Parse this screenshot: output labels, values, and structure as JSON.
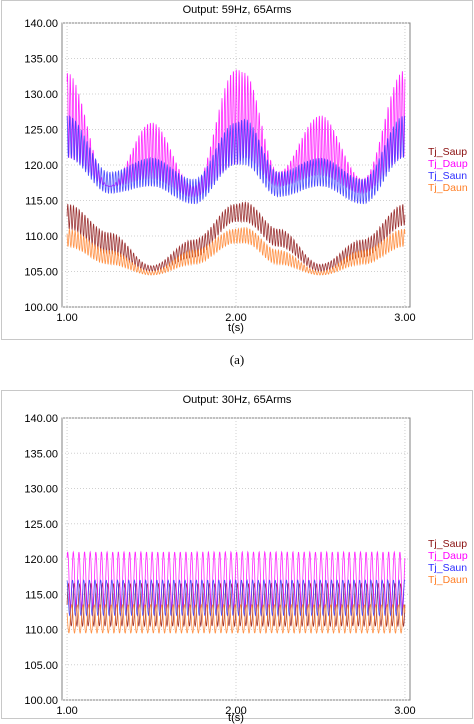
{
  "chart_data": [
    {
      "type": "line",
      "title": "Output: 59Hz, 65Arms",
      "xlabel": "t(s)",
      "ylabel": "",
      "xlim": [
        0.97,
        3.03
      ],
      "ylim": [
        100,
        140
      ],
      "x_ticks": [
        "1.00",
        "2.00",
        "3.00"
      ],
      "y_ticks": [
        "100.00",
        "105.00",
        "110.00",
        "115.00",
        "120.00",
        "125.00",
        "130.00",
        "135.00",
        "140.00"
      ],
      "grid": true,
      "legend_position": "right",
      "series": [
        {
          "name": "Tj_Saup",
          "color": "#8b1010",
          "x": [
            1.0,
            1.25,
            1.5,
            1.75,
            2.0,
            2.05,
            2.25,
            2.5,
            2.75,
            3.0
          ],
          "max": [
            114.5,
            110.5,
            105.8,
            109.5,
            114.5,
            114.8,
            111.0,
            106.0,
            109.5,
            114.5
          ],
          "min": [
            111.0,
            107.5,
            105.0,
            107.0,
            112.0,
            112.0,
            108.5,
            105.0,
            107.0,
            111.5
          ]
        },
        {
          "name": "Tj_Daup",
          "color": "#ff00ff",
          "x": [
            1.0,
            1.25,
            1.5,
            1.75,
            2.0,
            2.05,
            2.25,
            2.5,
            2.75,
            3.0
          ],
          "max": [
            133.0,
            117.0,
            126.0,
            117.0,
            133.5,
            133.0,
            119.0,
            127.0,
            118.0,
            133.5
          ],
          "min": [
            121.0,
            117.0,
            118.0,
            115.5,
            120.0,
            121.0,
            117.0,
            118.5,
            116.0,
            121.0
          ]
        },
        {
          "name": "Tj_Saun",
          "color": "#3030ff",
          "x": [
            1.0,
            1.25,
            1.5,
            1.75,
            2.0,
            2.05,
            2.25,
            2.5,
            2.75,
            3.0
          ],
          "max": [
            127.0,
            119.0,
            121.0,
            118.0,
            126.0,
            126.5,
            119.0,
            121.0,
            118.0,
            127.0
          ],
          "min": [
            121.0,
            116.0,
            117.0,
            114.5,
            120.0,
            120.0,
            115.5,
            117.0,
            114.5,
            121.0
          ]
        },
        {
          "name": "Tj_Daun",
          "color": "#ff7f27",
          "x": [
            1.0,
            1.25,
            1.5,
            1.75,
            2.0,
            2.05,
            2.25,
            2.5,
            2.75,
            3.0
          ],
          "max": [
            111.0,
            108.0,
            105.0,
            108.0,
            111.0,
            111.2,
            108.0,
            105.0,
            108.0,
            111.0
          ],
          "min": [
            108.5,
            106.0,
            104.5,
            106.0,
            109.0,
            109.0,
            106.0,
            104.5,
            106.0,
            108.5
          ]
        }
      ]
    },
    {
      "type": "line",
      "title": "Output: 30Hz, 65Arms",
      "xlabel": "t(s)",
      "ylabel": "",
      "xlim": [
        0.97,
        3.03
      ],
      "ylim": [
        100,
        140
      ],
      "x_ticks": [
        "1.00",
        "2.00",
        "3.00"
      ],
      "y_ticks": [
        "100.00",
        "105.00",
        "110.00",
        "115.00",
        "120.00",
        "125.00",
        "130.00",
        "135.00",
        "140.00"
      ],
      "grid": true,
      "legend_position": "right",
      "series": [
        {
          "name": "Tj_Saup",
          "color": "#8b1010",
          "max": 116.5,
          "min": 110.5
        },
        {
          "name": "Tj_Daup",
          "color": "#ff00ff",
          "max": 121.0,
          "min": 113.0
        },
        {
          "name": "Tj_Saun",
          "color": "#3030ff",
          "max": 117.0,
          "min": 112.0
        },
        {
          "name": "Tj_Daun",
          "color": "#ff7f27",
          "max": 113.5,
          "min": 109.5
        }
      ]
    }
  ],
  "caption_a": "(a)"
}
